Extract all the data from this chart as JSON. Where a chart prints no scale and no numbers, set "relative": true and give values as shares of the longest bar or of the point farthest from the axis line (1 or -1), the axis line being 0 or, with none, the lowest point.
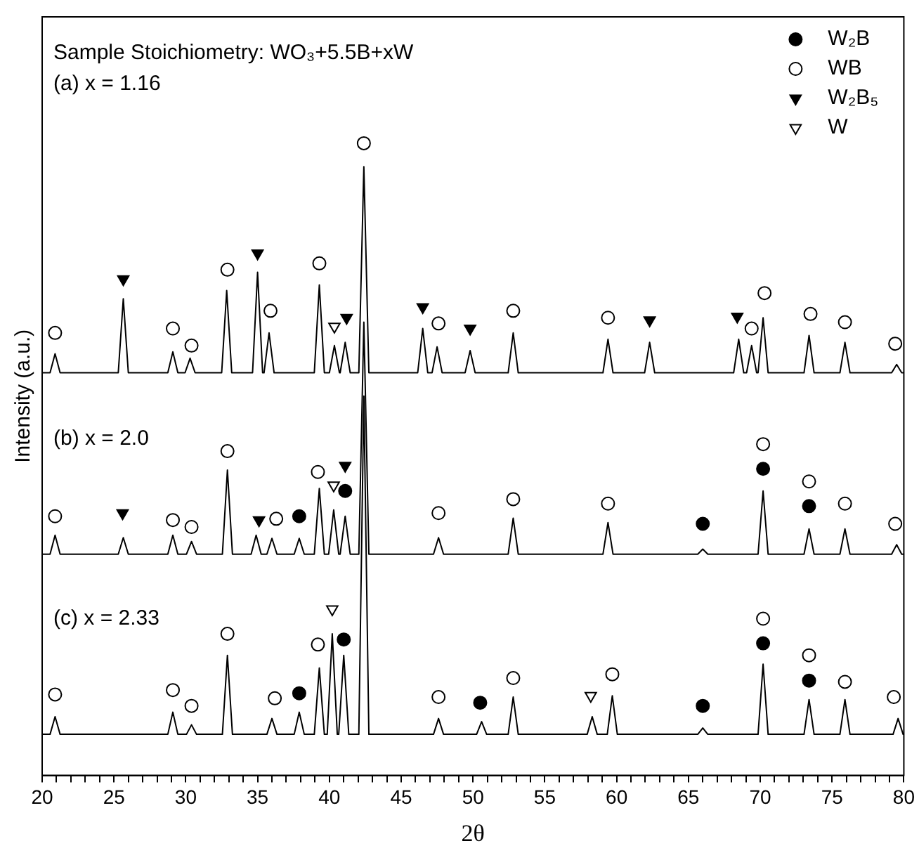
{
  "chart_data": {
    "type": "line",
    "relative": true,
    "xlabel": "2θ",
    "ylabel": "Intensity (a.u.)",
    "xlim": [
      20,
      80
    ],
    "xticks": [
      20,
      {
        "value": 21,
        "label": null
      },
      {
        "value": 22,
        "label": null
      },
      {
        "value": 23,
        "label": null
      },
      {
        "value": 24,
        "label": null
      },
      25,
      {
        "value": 26,
        "label": null
      },
      {
        "value": 27,
        "label": null
      },
      {
        "value": 28,
        "label": null
      },
      {
        "value": 29,
        "label": null
      },
      30,
      {
        "value": 31,
        "label": null
      },
      {
        "value": 32,
        "label": null
      },
      {
        "value": 33,
        "label": null
      },
      {
        "value": 34,
        "label": null
      },
      35,
      {
        "value": 36,
        "label": null
      },
      {
        "value": 37,
        "label": null
      },
      {
        "value": 38,
        "label": null
      },
      {
        "value": 39,
        "label": null
      },
      40,
      {
        "value": 41,
        "label": null
      },
      {
        "value": 42,
        "label": null
      },
      {
        "value": 43,
        "label": null
      },
      {
        "value": 44,
        "label": null
      },
      45,
      {
        "value": 46,
        "label": null
      },
      {
        "value": 47,
        "label": null
      },
      {
        "value": 48,
        "label": null
      },
      {
        "value": 49,
        "label": null
      },
      50,
      {
        "value": 51,
        "label": null
      },
      {
        "value": 52,
        "label": null
      },
      {
        "value": 53,
        "label": null
      },
      {
        "value": 54,
        "label": null
      },
      55,
      {
        "value": 56,
        "label": null
      },
      {
        "value": 57,
        "label": null
      },
      {
        "value": 58,
        "label": null
      },
      {
        "value": 59,
        "label": null
      },
      60,
      {
        "value": 61,
        "label": null
      },
      {
        "value": 62,
        "label": null
      },
      {
        "value": 63,
        "label": null
      },
      {
        "value": 64,
        "label": null
      },
      65,
      {
        "value": 66,
        "label": null
      },
      {
        "value": 67,
        "label": null
      },
      {
        "value": 68,
        "label": null
      },
      {
        "value": 69,
        "label": null
      },
      70,
      {
        "value": 71,
        "label": null
      },
      {
        "value": 72,
        "label": null
      },
      {
        "value": 73,
        "label": null
      },
      {
        "value": 74,
        "label": null
      },
      75,
      {
        "value": 76,
        "label": null
      },
      {
        "value": 77,
        "label": null
      },
      {
        "value": 78,
        "label": null
      },
      {
        "value": 79,
        "label": null
      },
      80
    ],
    "grid": false,
    "legend": "top right",
    "line_style": "solid",
    "annotations": [
      "Sample Stoichiometry: WO₃+5.5B+xW",
      "(a) x = 1.16",
      "(b) x = 2.0",
      "(c) x = 2.33"
    ],
    "series": [
      {
        "color": "#000000",
        "marker": "none",
        "x": [
          20,
          20.55,
          20.9,
          21.25,
          25.3,
          25.65,
          26.0,
          28.75,
          29.1,
          29.45,
          29.95,
          30.3,
          30.65,
          32.5,
          32.85,
          33.2,
          34.65,
          35.0,
          35.35,
          35.45,
          35.8,
          36.15,
          38.95,
          39.3,
          39.65,
          40.0,
          40.35,
          40.7,
          40.75,
          41.1,
          41.45,
          42.05,
          42.4,
          42.75,
          46.15,
          46.5,
          46.85,
          47.15,
          47.5,
          47.85,
          49.45,
          49.8,
          50.15,
          52.45,
          52.8,
          53.15,
          59.05,
          59.4,
          59.75,
          61.95,
          62.3,
          62.65,
          68.15,
          68.5,
          68.85,
          69.05,
          69.4,
          69.75,
          69.85,
          70.2,
          70.55,
          73.05,
          73.4,
          73.75,
          75.55,
          75.9,
          76.25,
          79.15,
          79.5,
          79.85,
          80
        ],
        "values": [
          0.637,
          0.637,
          0.667,
          0.637,
          0.637,
          0.754,
          0.637,
          0.637,
          0.67,
          0.637,
          0.637,
          0.66,
          0.637,
          0.637,
          0.767,
          0.637,
          0.637,
          0.796,
          0.637,
          0.637,
          0.7,
          0.637,
          0.637,
          0.776,
          0.637,
          0.637,
          0.68,
          0.637,
          0.637,
          0.685,
          0.637,
          0.637,
          0.963,
          0.637,
          0.637,
          0.707,
          0.637,
          0.637,
          0.678,
          0.637,
          0.637,
          0.672,
          0.637,
          0.637,
          0.7,
          0.637,
          0.637,
          0.69,
          0.637,
          0.637,
          0.685,
          0.637,
          0.637,
          0.69,
          0.637,
          0.637,
          0.68,
          0.637,
          0.637,
          0.724,
          0.637,
          0.637,
          0.696,
          0.637,
          0.637,
          0.685,
          0.637,
          0.637,
          0.65,
          0.637,
          0.637
        ]
      },
      {
        "color": "#000000",
        "marker": "none",
        "x": [
          20,
          20.55,
          20.9,
          21.25,
          25.3,
          25.65,
          26.0,
          28.75,
          29.1,
          29.45,
          30.05,
          30.4,
          30.75,
          32.55,
          32.9,
          33.25,
          34.55,
          34.9,
          35.25,
          35.65,
          36.0,
          36.35,
          37.55,
          37.9,
          38.25,
          38.95,
          39.3,
          39.65,
          39.95,
          40.3,
          40.65,
          40.75,
          41.1,
          41.45,
          42.05,
          42.4,
          42.75,
          47.25,
          47.6,
          47.95,
          52.45,
          52.8,
          53.15,
          59.05,
          59.4,
          59.75,
          65.65,
          66.0,
          66.35,
          69.85,
          70.2,
          70.55,
          73.05,
          73.4,
          73.75,
          75.55,
          75.9,
          76.25,
          79.15,
          79.5,
          79.85,
          80
        ],
        "values": [
          0.35,
          0.35,
          0.38,
          0.35,
          0.35,
          0.376,
          0.35,
          0.35,
          0.38,
          0.35,
          0.35,
          0.37,
          0.35,
          0.35,
          0.483,
          0.35,
          0.35,
          0.38,
          0.35,
          0.35,
          0.375,
          0.35,
          0.35,
          0.375,
          0.35,
          0.35,
          0.454,
          0.35,
          0.35,
          0.42,
          0.35,
          0.35,
          0.41,
          0.35,
          0.35,
          0.717,
          0.35,
          0.35,
          0.376,
          0.35,
          0.35,
          0.407,
          0.35,
          0.35,
          0.4,
          0.35,
          0.35,
          0.358,
          0.35,
          0.35,
          0.45,
          0.35,
          0.35,
          0.39,
          0.35,
          0.35,
          0.39,
          0.35,
          0.35,
          0.365,
          0.35,
          0.35
        ]
      },
      {
        "color": "#000000",
        "marker": "none",
        "x": [
          20,
          20.55,
          20.9,
          21.25,
          28.75,
          29.1,
          29.45,
          30.05,
          30.4,
          30.75,
          32.55,
          32.9,
          33.25,
          35.65,
          36.0,
          36.35,
          37.55,
          37.9,
          38.25,
          38.95,
          39.3,
          39.65,
          39.85,
          40.2,
          40.55,
          40.65,
          41.0,
          41.35,
          42.05,
          42.4,
          42.75,
          47.25,
          47.6,
          47.95,
          50.25,
          50.6,
          50.95,
          52.45,
          52.8,
          53.15,
          57.95,
          58.3,
          58.65,
          59.35,
          59.7,
          60.05,
          65.65,
          66.0,
          66.35,
          69.85,
          70.2,
          70.55,
          73.05,
          73.4,
          73.75,
          75.55,
          75.9,
          76.25,
          79.25,
          79.6,
          79.95,
          80
        ],
        "values": [
          0.065,
          0.065,
          0.093,
          0.065,
          0.065,
          0.1,
          0.065,
          0.065,
          0.08,
          0.065,
          0.065,
          0.19,
          0.065,
          0.065,
          0.09,
          0.065,
          0.065,
          0.1,
          0.065,
          0.065,
          0.17,
          0.065,
          0.065,
          0.224,
          0.065,
          0.065,
          0.19,
          0.065,
          0.065,
          0.6,
          0.065,
          0.065,
          0.09,
          0.065,
          0.065,
          0.085,
          0.065,
          0.065,
          0.124,
          0.065,
          0.065,
          0.093,
          0.065,
          0.065,
          0.126,
          0.065,
          0.065,
          0.075,
          0.065,
          0.065,
          0.176,
          0.065,
          0.065,
          0.12,
          0.065,
          0.065,
          0.12,
          0.065,
          0.065,
          0.09,
          0.065,
          0.065
        ]
      },
      {
        "type": "scatter",
        "name": "W₂B",
        "color": "#000000",
        "marker": "circle",
        "x": [
          37.9,
          41.1,
          66.0,
          70.2,
          73.4,
          37.9,
          41.0,
          50.5,
          66.0,
          70.2,
          73.4
        ],
        "values": [
          0.41,
          0.45,
          0.398,
          0.485,
          0.426,
          0.13,
          0.215,
          0.115,
          0.11,
          0.209,
          0.15
        ]
      },
      {
        "type": "scatter",
        "name": "WB",
        "color": "#ffffff",
        "marker": "circle",
        "x": [
          20.9,
          29.1,
          30.4,
          32.9,
          35.9,
          39.3,
          42.4,
          47.6,
          52.8,
          59.4,
          69.4,
          70.3,
          73.5,
          75.9,
          79.4,
          20.9,
          29.1,
          30.4,
          32.9,
          36.3,
          39.2,
          47.6,
          52.8,
          59.4,
          70.2,
          73.4,
          75.9,
          79.4,
          20.9,
          29.1,
          30.4,
          32.9,
          36.2,
          39.2,
          47.6,
          52.8,
          59.7,
          70.2,
          73.4,
          75.9,
          79.3
        ],
        "values": [
          0.7,
          0.707,
          0.68,
          0.8,
          0.735,
          0.81,
          1.0,
          0.715,
          0.735,
          0.724,
          0.707,
          0.763,
          0.73,
          0.717,
          0.683,
          0.41,
          0.404,
          0.393,
          0.513,
          0.406,
          0.48,
          0.415,
          0.437,
          0.43,
          0.524,
          0.465,
          0.43,
          0.398,
          0.128,
          0.135,
          0.11,
          0.224,
          0.122,
          0.207,
          0.124,
          0.154,
          0.16,
          0.248,
          0.19,
          0.148,
          0.124
        ]
      },
      {
        "type": "scatter",
        "name": "W₂B₅",
        "color": "#000000",
        "marker": "triangle",
        "x": [
          25.65,
          35.0,
          41.2,
          46.5,
          49.8,
          62.3,
          68.4,
          25.6,
          35.1,
          41.1
        ],
        "values": [
          0.785,
          0.826,
          0.724,
          0.741,
          0.707,
          0.72,
          0.726,
          0.415,
          0.404,
          0.49
        ]
      },
      {
        "type": "scatter",
        "name": "W",
        "color": "#ffffff",
        "marker": "triangle",
        "x": [
          40.35,
          40.3,
          40.2,
          58.2
        ],
        "values": [
          0.71,
          0.459,
          0.263,
          0.126
        ]
      }
    ]
  }
}
